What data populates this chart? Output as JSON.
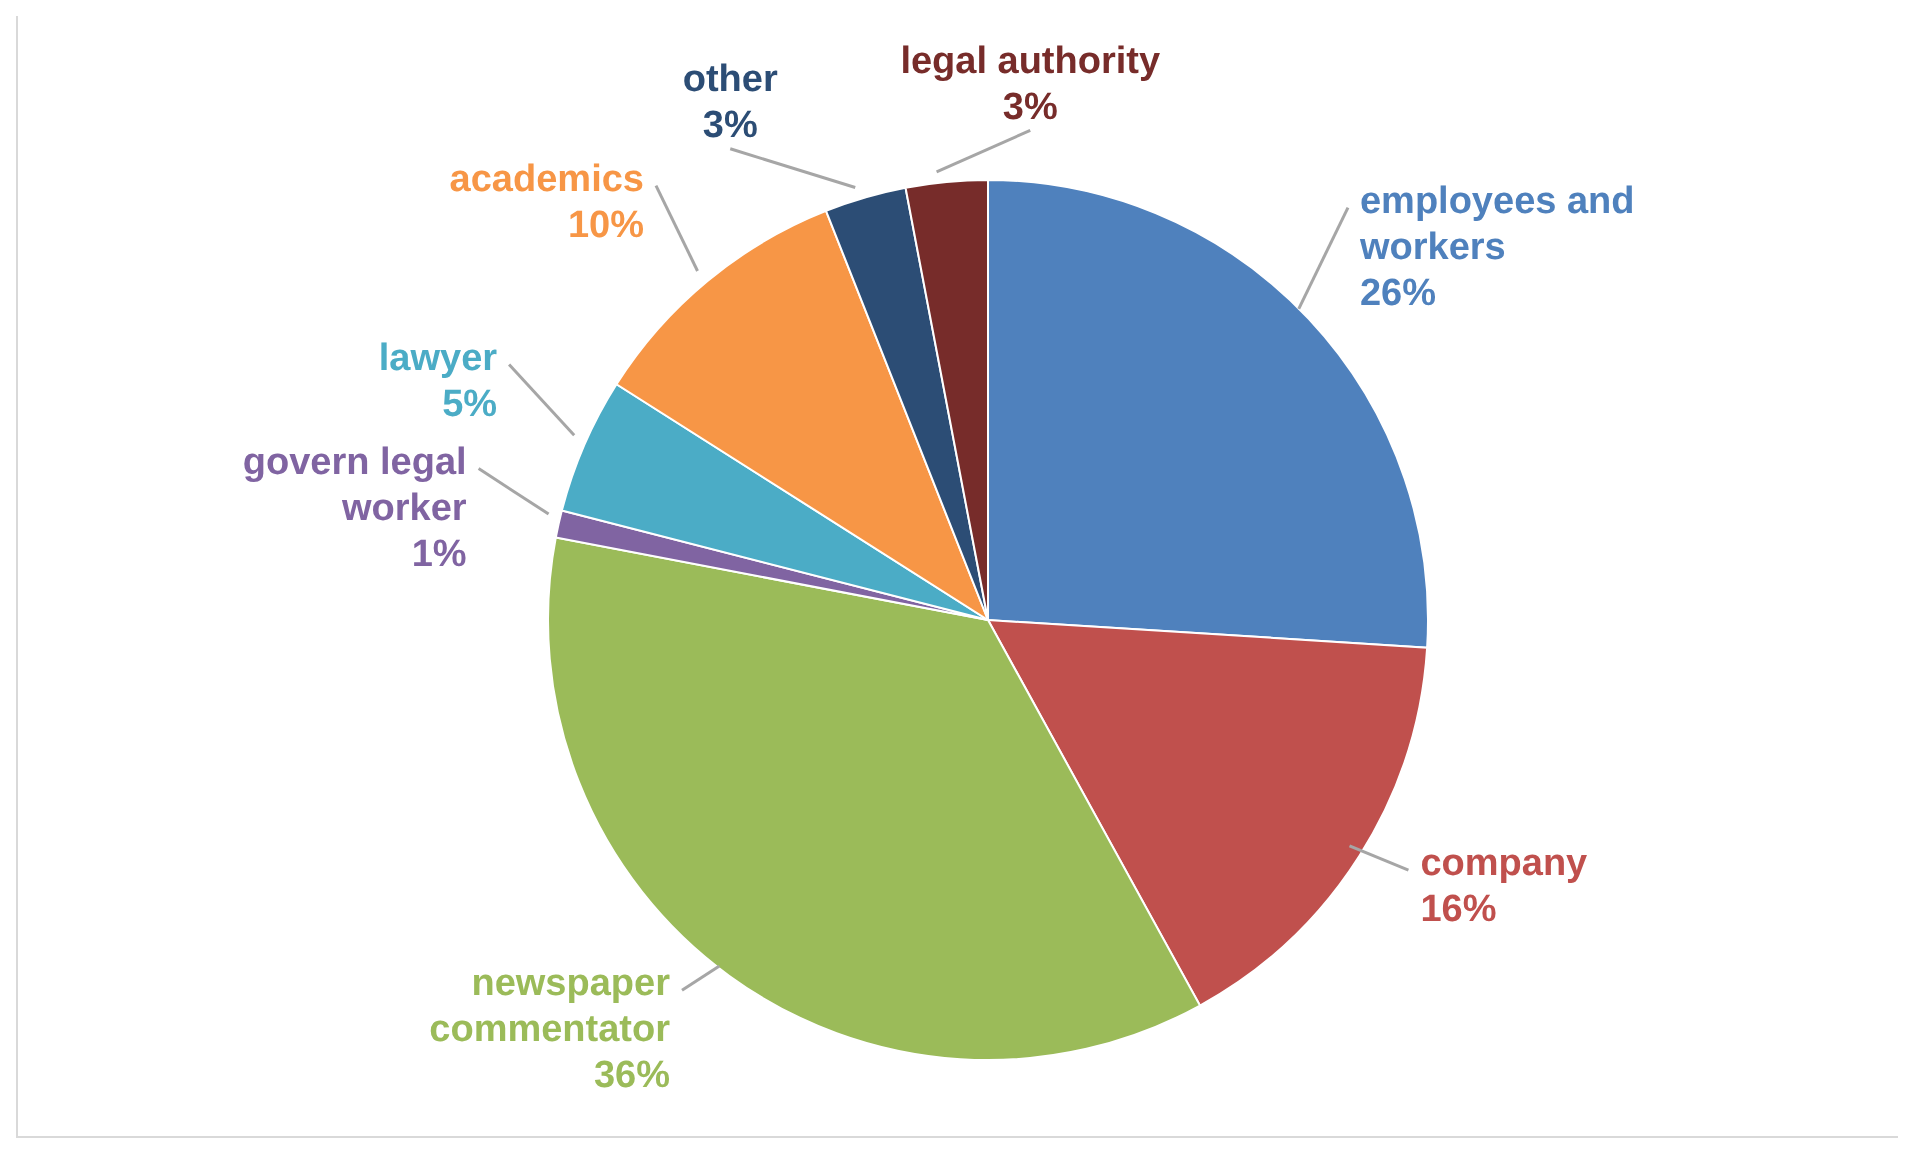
{
  "chart_data": {
    "type": "pie",
    "categories": [
      "employees and workers",
      "company",
      "newspaper commentator",
      "govern legal worker",
      "lawyer",
      "academics",
      "other",
      "legal authority"
    ],
    "values": [
      26,
      16,
      36,
      1,
      5,
      10,
      3,
      3
    ],
    "value_labels": [
      "26%",
      "16%",
      "36%",
      "1%",
      "5%",
      "10%",
      "3%",
      "3%"
    ],
    "colors": [
      "#4f81bd",
      "#c0504d",
      "#9bbb59",
      "#8064a2",
      "#4bacc6",
      "#f79646",
      "#2c4d75",
      "#772c2a"
    ],
    "legend": false
  }
}
